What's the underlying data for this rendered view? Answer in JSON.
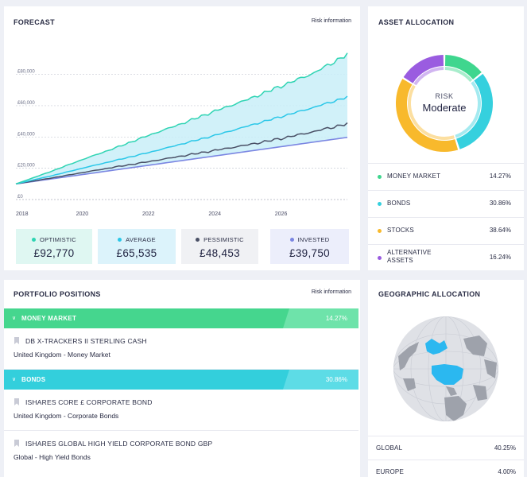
{
  "colors": {
    "optimistic": "#2fd4b3",
    "average": "#2ac7e8",
    "pessimistic": "#4a5066",
    "invested": "#7b86e2",
    "money_market": "#3fd68e",
    "bonds": "#35d0de",
    "stocks": "#f8b92c",
    "alternative": "#9a5ce0",
    "highlight": "#2bb8f0"
  },
  "forecast": {
    "title": "FORECAST",
    "risk_link": "Risk information",
    "chart_data": {
      "type": "line",
      "title": "FORECAST",
      "x": [
        2018,
        2019,
        2020,
        2021,
        2022,
        2023,
        2024,
        2025,
        2026,
        2027,
        2028
      ],
      "xlim": [
        2018,
        2028
      ],
      "ylim": [
        0,
        93000
      ],
      "x_ticks": [
        2018,
        2020,
        2022,
        2024,
        2026
      ],
      "y_ticks": [
        0,
        20000,
        40000,
        60000,
        80000
      ],
      "y_tick_labels": [
        "£0",
        "£20,000",
        "£40,000",
        "£60,000",
        "£80,000"
      ],
      "band": {
        "upper": "Optimistic",
        "lower": "Invested"
      },
      "series": [
        {
          "name": "Optimistic",
          "values": [
            10000,
            17500,
            25500,
            33000,
            41000,
            48500,
            56500,
            64000,
            72500,
            81000,
            92770
          ]
        },
        {
          "name": "Average",
          "values": [
            10000,
            14800,
            20000,
            25000,
            30000,
            35500,
            41000,
            47000,
            53000,
            59000,
            65535
          ]
        },
        {
          "name": "Pessimistic",
          "values": [
            10000,
            13500,
            17200,
            20800,
            24200,
            27800,
            31400,
            35000,
            39000,
            43500,
            48453
          ]
        },
        {
          "name": "Invested",
          "values": [
            10000,
            12975,
            15950,
            18925,
            21900,
            24875,
            27850,
            30825,
            33800,
            36775,
            39750
          ]
        }
      ]
    },
    "summary": [
      {
        "label": "OPTIMISTIC",
        "value": "£92,770"
      },
      {
        "label": "AVERAGE",
        "value": "£65,535"
      },
      {
        "label": "PESSIMISTIC",
        "value": "£48,453"
      },
      {
        "label": "INVESTED",
        "value": "£39,750"
      }
    ]
  },
  "asset_allocation": {
    "title": "ASSET ALLOCATION",
    "risk_label": "RISK",
    "risk_value": "Moderate",
    "chart_data": {
      "type": "pie",
      "title": "ASSET ALLOCATION",
      "categories": [
        "Money Market",
        "Bonds",
        "Stocks",
        "Alternative Assets"
      ],
      "values": [
        14.27,
        30.86,
        38.64,
        16.24
      ]
    },
    "items": [
      {
        "label": "MONEY MARKET",
        "value": "14.27%"
      },
      {
        "label": "BONDS",
        "value": "30.86%"
      },
      {
        "label": "STOCKS",
        "value": "38.64%"
      },
      {
        "label_line1": "ALTERNATIVE",
        "label_line2": "ASSETS",
        "value": "16.24%"
      }
    ]
  },
  "portfolio": {
    "title": "PORTFOLIO POSITIONS",
    "risk_link": "Risk information",
    "sections": [
      {
        "name": "MONEY MARKET",
        "pct": "14.27%"
      },
      {
        "name": "BONDS",
        "pct": "30.86%"
      }
    ],
    "funds": [
      {
        "name": "DB X-TRACKERS II STERLING CASH",
        "sub": "United Kingdom - Money Market"
      },
      {
        "name": "ISHARES CORE £ CORPORATE BOND",
        "sub": "United Kingdom - Corporate Bonds"
      },
      {
        "name": "ISHARES GLOBAL HIGH YIELD CORPORATE BOND GBP",
        "sub": "Global - High Yield Bonds"
      }
    ]
  },
  "geographic": {
    "title": "GEOGRAPHIC ALLOCATION",
    "items": [
      {
        "label": "GLOBAL",
        "value": "40.25%"
      },
      {
        "label": "EUROPE",
        "value": "4.00%"
      }
    ]
  }
}
